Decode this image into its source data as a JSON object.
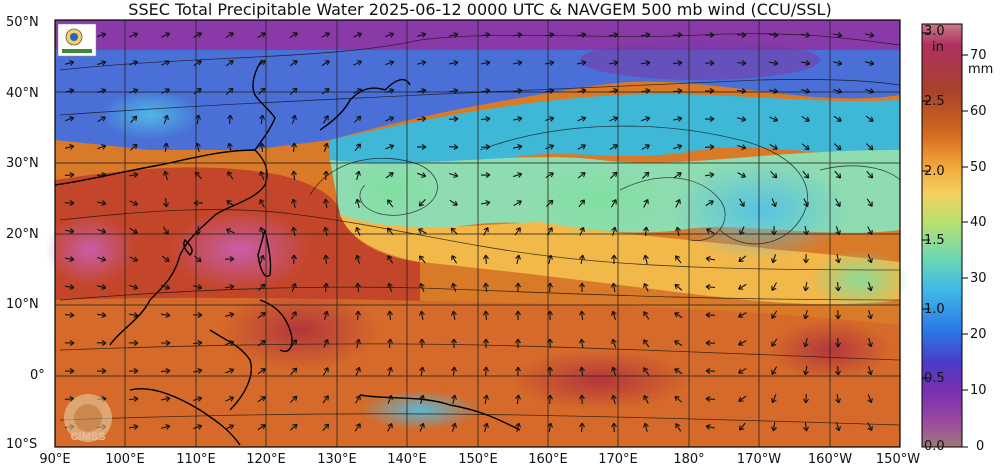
{
  "title": "SSEC Total Precipitable Water  2025-06-12 0000 UTC & NAVGEM 500 mb wind (CCU/SSL)",
  "lat_labels": [
    "50°N",
    "40°N",
    "30°N",
    "20°N",
    "10°N",
    "0°",
    "10°S"
  ],
  "lon_labels": [
    "90°E",
    "100°E",
    "110°E",
    "120°E",
    "130°E",
    "140°E",
    "150°E",
    "160°E",
    "170°E",
    "180°",
    "170°W",
    "160°W",
    "150°W"
  ],
  "colorbar": {
    "inch_unit": "in",
    "inch_ticks": [
      "3.0",
      "2.5",
      "2.0",
      "1.5",
      "1.0",
      "0.5",
      "0.0"
    ],
    "mm_unit": "mm",
    "mm_ticks": [
      "70",
      "60",
      "50",
      "40",
      "30",
      "20",
      "10",
      "0"
    ],
    "colors": [
      "#c87a8a",
      "#b03060",
      "#a8432a",
      "#d4691f",
      "#f2a23a",
      "#f5d060",
      "#b8e070",
      "#6fd8b0",
      "#3fb8e8",
      "#2a7ce8",
      "#4a3cc8",
      "#7a2fb0",
      "#9a4aa0",
      "#9c7a7a"
    ]
  },
  "logos": {
    "top_logo": "SSEC logo",
    "bottom_watermark": "CIMSS"
  },
  "colors": {
    "background": "#ffffff",
    "grid": "#222222",
    "arrow": "#111111"
  }
}
